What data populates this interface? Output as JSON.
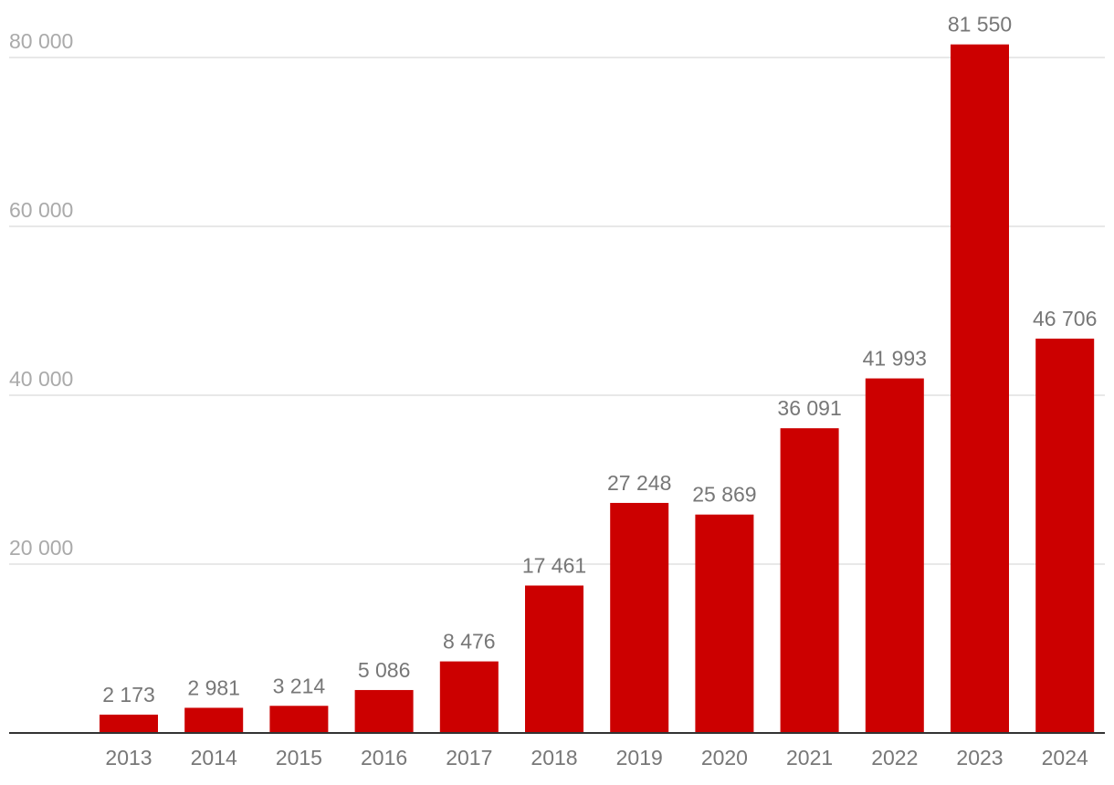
{
  "chart_data": {
    "type": "bar",
    "title": "",
    "xlabel": "",
    "ylabel": "",
    "ylim": [
      0,
      80000
    ],
    "grid": true,
    "bar_color": "#cc0000",
    "categories": [
      "2013",
      "2014",
      "2015",
      "2016",
      "2017",
      "2018",
      "2019",
      "2020",
      "2021",
      "2022",
      "2023",
      "2024"
    ],
    "values": [
      2173,
      2981,
      3214,
      5086,
      8476,
      17461,
      27248,
      25869,
      36091,
      41993,
      81550,
      46706
    ],
    "value_labels": [
      "2 173",
      "2 981",
      "3 214",
      "5 086",
      "8 476",
      "17 461",
      "27 248",
      "25 869",
      "36 091",
      "41 993",
      "81 550",
      "46 706"
    ],
    "yticks": [
      20000,
      40000,
      60000,
      80000
    ],
    "ytick_labels": [
      "20 000",
      "40 000",
      "60 000",
      "80 000"
    ]
  }
}
